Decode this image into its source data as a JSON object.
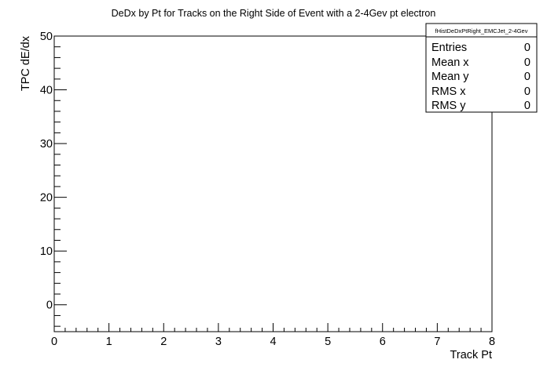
{
  "chart_data": {
    "type": "scatter",
    "title": "DeDx by Pt for Tracks on the Right Side of Event with a 2-4Gev pt electron",
    "xlabel": "Track Pt",
    "ylabel": "TPC dE/dx",
    "xlim": [
      0,
      8
    ],
    "ylim": [
      -5,
      50
    ],
    "x_major_ticks": [
      0,
      1,
      2,
      3,
      4,
      5,
      6,
      7,
      8
    ],
    "x_tick_labels": [
      "0",
      "1",
      "2",
      "3",
      "4",
      "5",
      "6",
      "7",
      "8"
    ],
    "y_major_ticks": [
      0,
      10,
      20,
      30,
      40,
      50
    ],
    "y_tick_labels": [
      "0",
      "10",
      "20",
      "30",
      "40",
      "50"
    ],
    "series": [],
    "grid": false,
    "legend_placement": "top-right",
    "stats_box": {
      "name": "fHistDeDxPtRight_EMCJet_2-4Gev",
      "rows": [
        {
          "label": "Entries",
          "value": "0"
        },
        {
          "label": "Mean x",
          "value": "0"
        },
        {
          "label": "Mean y",
          "value": "0"
        },
        {
          "label": "RMS x",
          "value": "0"
        },
        {
          "label": "RMS y",
          "value": "0"
        }
      ]
    }
  }
}
